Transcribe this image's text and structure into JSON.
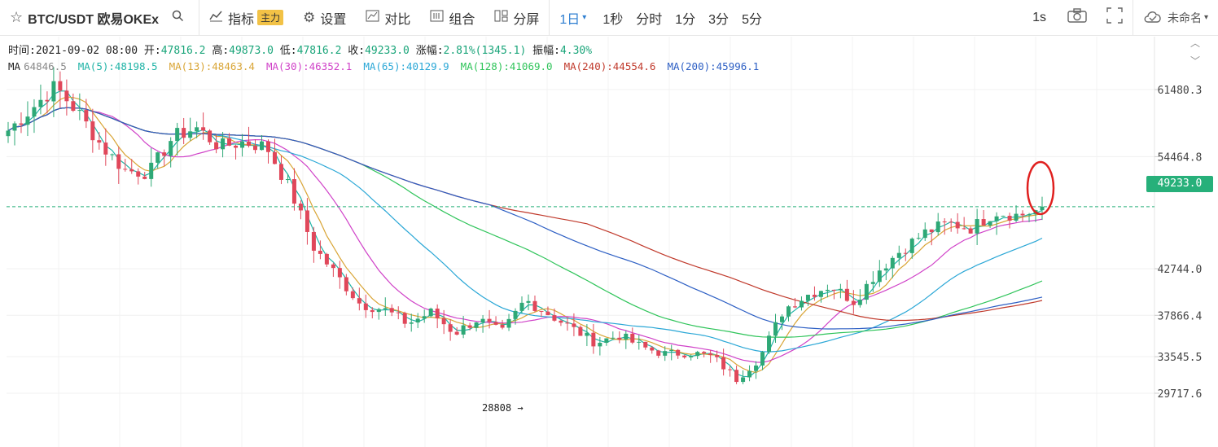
{
  "toolbar": {
    "symbol": "BTC/USDT 欧易OKEx",
    "indicators": "指标",
    "main_badge": "主力",
    "settings": "设置",
    "compare": "对比",
    "combine": "组合",
    "split": "分屏",
    "interval_active": "1日",
    "intervals": [
      "1秒",
      "分时",
      "1分",
      "3分",
      "5分"
    ],
    "refresh": "1s",
    "layout_name": "未命名"
  },
  "info": {
    "time_label": "时间:",
    "time": "2021-09-02 08:00",
    "open_label": "开:",
    "open": "47816.2",
    "high_label": "高:",
    "high": "49873.0",
    "low_label": "低:",
    "low": "47816.2",
    "close_label": "收:",
    "close": "49233.0",
    "change_label": "涨幅:",
    "change": "2.81%(1345.1)",
    "amp_label": "振幅:",
    "amp": "4.30%"
  },
  "ma_legend": [
    {
      "label": "MA",
      "color": "#222"
    },
    {
      "label": "64846.5",
      "color": "#888"
    },
    {
      "label": "MA(5):48198.5",
      "color": "#1fb3a6"
    },
    {
      "label": "MA(13):48463.4",
      "color": "#d9a536"
    },
    {
      "label": "MA(30):46352.1",
      "color": "#d042c8"
    },
    {
      "label": "MA(65):40129.9",
      "color": "#2aa7d6"
    },
    {
      "label": "MA(128):41069.0",
      "color": "#2fc45a"
    },
    {
      "label": "MA(240):44554.6",
      "color": "#c0392b"
    },
    {
      "label": "MA(200):45996.1",
      "color": "#2d5fc4"
    }
  ],
  "current_price": "49233.0",
  "low_annotation": "28808 →",
  "colors": {
    "up": "#2ea876",
    "down": "#e0475a",
    "ma5": "#1fb3a6",
    "ma13": "#d9a536",
    "ma30": "#d042c8",
    "ma65": "#2aa7d6",
    "ma128": "#2fc45a",
    "ma240": "#c0392b",
    "ma200": "#2d5fc4"
  },
  "chart_data": {
    "type": "candlestick",
    "y_ticks": [
      61480.3,
      54464.8,
      42744.0,
      37866.4,
      33545.5,
      29717.6
    ],
    "last_price": 49233.0,
    "annotations": [
      {
        "text": "28808 →",
        "value": 28808
      }
    ],
    "series": [
      {
        "name": "MA(5)",
        "value": 48198.5
      },
      {
        "name": "MA(13)",
        "value": 48463.4
      },
      {
        "name": "MA(30)",
        "value": 46352.1
      },
      {
        "name": "MA(65)",
        "value": 40129.9
      },
      {
        "name": "MA(128)",
        "value": 41069.0
      },
      {
        "name": "MA(240)",
        "value": 44554.6
      },
      {
        "name": "MA(200)",
        "value": 45996.1
      }
    ]
  }
}
